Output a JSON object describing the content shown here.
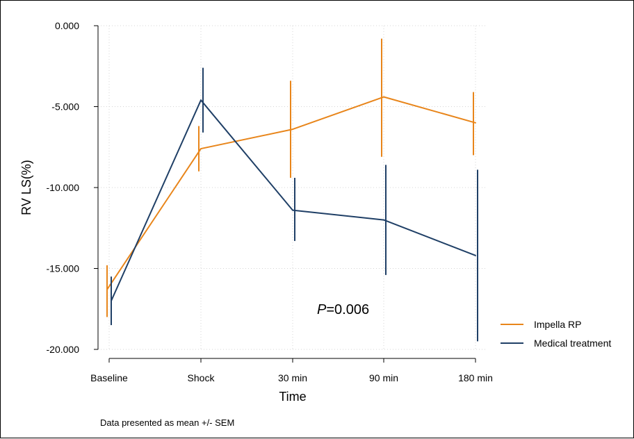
{
  "chart_data": {
    "type": "line",
    "categories": [
      "Baseline",
      "Shock",
      "30 min",
      "90 min",
      "180 min"
    ],
    "xlabel": "Time",
    "ylabel": "RV LS(%)",
    "ylim": [
      -20,
      0
    ],
    "yticks": [
      0,
      -5,
      -10,
      -15,
      -20
    ],
    "ytick_labels": [
      "0.000",
      "-5.000",
      "-10.000",
      "-15.000",
      "-20.000"
    ],
    "grid": true,
    "legend_position": "right",
    "series": [
      {
        "name": "Impella RP",
        "color": "#e8851a",
        "values": [
          -16.3,
          -7.6,
          -6.4,
          -4.4,
          -6.0
        ],
        "error_low": [
          -18.0,
          -9.0,
          -9.4,
          -8.1,
          -8.0
        ],
        "error_high": [
          -14.8,
          -6.2,
          -3.4,
          -0.8,
          -4.1
        ]
      },
      {
        "name": "Medical treatment",
        "color": "#1f3f66",
        "values": [
          -17.0,
          -4.6,
          -11.4,
          -12.0,
          -14.2
        ],
        "error_low": [
          -18.5,
          -6.6,
          -13.3,
          -15.4,
          -19.5
        ],
        "error_high": [
          -15.5,
          -2.6,
          -9.4,
          -8.6,
          -8.9
        ]
      }
    ],
    "annotation": {
      "italic": "P",
      "rest": "=0.006"
    },
    "note": "Data presented as mean +/- SEM"
  }
}
